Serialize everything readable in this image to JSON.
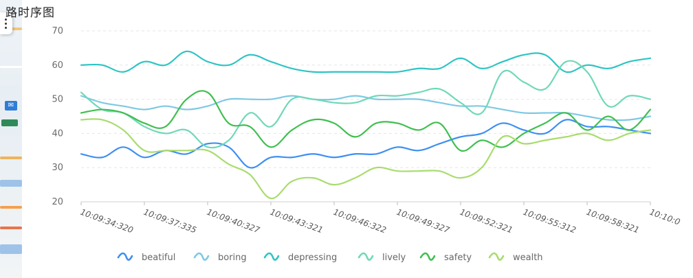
{
  "title": "路时序图",
  "colors": {
    "beatiful": "#3d8ff2",
    "boring": "#7ec8e3",
    "depressing": "#2ec4c4",
    "lively": "#6fd8b8",
    "safety": "#3fbf4f",
    "wealth": "#a8dc6e"
  },
  "map_panel": {
    "marker_icon": "envelope-icon"
  },
  "chart_data": {
    "type": "line",
    "title": "路时序图",
    "ylim": [
      20,
      70
    ],
    "yticks": [
      20,
      30,
      40,
      50,
      60,
      70
    ],
    "x_labels": [
      "10:09:34:320",
      "10:09:37:335",
      "10:09:40:327",
      "10:09:43:321",
      "10:09:46:322",
      "10:09:49:327",
      "10:09:52:321",
      "10:09:55:312",
      "10:09:58:321",
      "10:10:0"
    ],
    "grid": "horizontal-dashed",
    "legend_position": "bottom",
    "series": [
      {
        "name": "beatiful",
        "values": [
          34,
          33,
          36,
          33,
          35,
          34,
          37,
          36,
          30,
          33,
          33,
          34,
          33,
          34,
          34,
          36,
          35,
          37,
          39,
          40,
          43,
          41,
          40,
          44,
          42,
          42,
          41,
          40
        ]
      },
      {
        "name": "boring",
        "values": [
          51,
          49,
          48,
          47,
          48,
          47,
          48,
          50,
          50,
          50,
          51,
          50,
          50,
          51,
          50,
          50,
          50,
          49,
          48,
          48,
          47,
          46,
          46,
          46,
          45,
          44,
          44,
          45
        ]
      },
      {
        "name": "depressing",
        "values": [
          60,
          60,
          58,
          61,
          60,
          64,
          61,
          60,
          63,
          61,
          59,
          58,
          58,
          58,
          58,
          58,
          59,
          59,
          62,
          59,
          61,
          63,
          63,
          58,
          60,
          59,
          61,
          62
        ]
      },
      {
        "name": "lively",
        "values": [
          52,
          47,
          46,
          42,
          40,
          41,
          36,
          38,
          46,
          42,
          50,
          50,
          49,
          49,
          51,
          51,
          52,
          53,
          49,
          46,
          58,
          55,
          53,
          61,
          58,
          48,
          51,
          50
        ]
      },
      {
        "name": "safety",
        "values": [
          46,
          47,
          46,
          43,
          42,
          50,
          52,
          43,
          42,
          36,
          41,
          44,
          43,
          39,
          43,
          43,
          41,
          43,
          35,
          38,
          36,
          40,
          43,
          46,
          41,
          45,
          41,
          47
        ]
      },
      {
        "name": "wealth",
        "values": [
          44,
          44,
          41,
          35,
          35,
          35,
          35,
          31,
          28,
          21,
          26,
          27,
          25,
          27,
          30,
          29,
          29,
          29,
          27,
          30,
          39,
          37,
          38,
          39,
          40,
          38,
          40,
          41
        ]
      }
    ]
  }
}
